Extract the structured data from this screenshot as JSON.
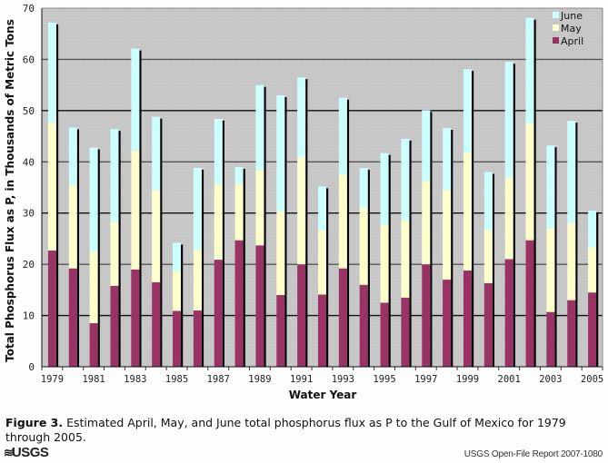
{
  "chart_data": {
    "type": "bar",
    "stacked": true,
    "title": "",
    "xlabel": "Water Year",
    "ylabel": "Total Phosphorus Flux as P, in Thousands of Metric Tons",
    "ylim": [
      0,
      70
    ],
    "yticks": [
      0,
      10,
      20,
      30,
      40,
      50,
      60,
      70
    ],
    "xtick_labels": [
      "1979",
      "1981",
      "1983",
      "1985",
      "1987",
      "1989",
      "1991",
      "1993",
      "1995",
      "1997",
      "1999",
      "2001",
      "2003",
      "2005"
    ],
    "grid": true,
    "legend_position": "top-right",
    "categories": [
      "1979",
      "1980",
      "1981",
      "1982",
      "1983",
      "1984",
      "1985",
      "1986",
      "1987",
      "1988",
      "1989",
      "1990",
      "1991",
      "1992",
      "1993",
      "1994",
      "1995",
      "1996",
      "1997",
      "1998",
      "1999",
      "2000",
      "2001",
      "2002",
      "2003",
      "2004",
      "2005"
    ],
    "series": [
      {
        "name": "April",
        "color": "#993366",
        "values": [
          22.7,
          19.2,
          8.5,
          15.8,
          19.0,
          16.5,
          10.9,
          11.0,
          20.9,
          24.7,
          23.7,
          14.0,
          20.0,
          14.1,
          19.2,
          16.0,
          12.5,
          13.5,
          20.0,
          17.0,
          18.8,
          16.3,
          21.0,
          24.7,
          10.7,
          13.0,
          14.5
        ]
      },
      {
        "name": "May",
        "color": "#ffffcc",
        "values": [
          25.0,
          16.2,
          14.0,
          12.4,
          23.2,
          18.0,
          7.7,
          11.9,
          14.7,
          11.0,
          14.7,
          16.3,
          21.0,
          12.5,
          18.3,
          15.0,
          15.2,
          15.0,
          16.2,
          17.5,
          23.0,
          10.3,
          16.0,
          22.8,
          16.3,
          15.0,
          8.8
        ]
      },
      {
        "name": "June",
        "color": "#ccffff",
        "values": [
          19.5,
          11.3,
          20.3,
          18.2,
          19.9,
          14.3,
          5.6,
          15.9,
          12.8,
          3.3,
          16.6,
          22.7,
          15.5,
          8.6,
          15.0,
          7.8,
          14.0,
          16.0,
          13.9,
          12.1,
          16.3,
          11.4,
          22.5,
          20.6,
          16.2,
          20.0,
          7.2
        ]
      }
    ]
  },
  "caption": {
    "figure_label": "Figure 3.",
    "text": "Estimated April, May, and June total phosphorus flux as P to the Gulf of Mexico for 1979 through 2005."
  },
  "footer": {
    "logo_text": "USGS",
    "report": "USGS Open-File Report 2007-1080"
  },
  "colors": {
    "plot_background": "#c8c8c8",
    "april": "#993366",
    "may": "#ffffcc",
    "june": "#ccffff"
  }
}
